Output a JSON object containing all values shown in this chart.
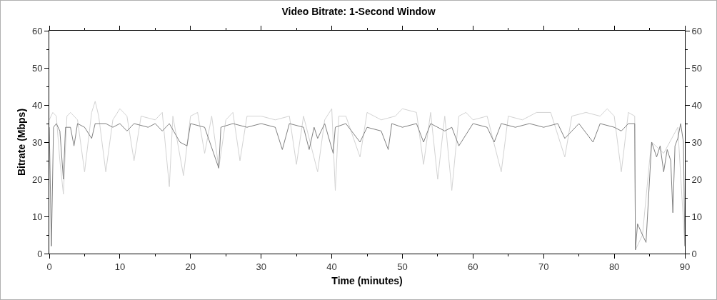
{
  "chart_data": {
    "type": "line",
    "title": "Video Bitrate: 1-Second Window",
    "xlabel": "Time (minutes)",
    "ylabel": "Bitrate (Mbps)",
    "xlim": [
      0,
      90
    ],
    "xticks": [
      0,
      10,
      20,
      30,
      40,
      50,
      60,
      70,
      80,
      90
    ],
    "ylim": [
      0,
      60
    ],
    "yticks": [
      0,
      10,
      20,
      30,
      40,
      50,
      60
    ],
    "y2lim": [
      0,
      60
    ],
    "y2ticks": [
      0,
      10,
      20,
      30,
      40,
      50,
      60
    ],
    "grid": false,
    "marker": "none",
    "line_style": "solid",
    "series": [
      {
        "color": "#d3d3d3",
        "x": [
          0,
          0.5,
          1,
          1.5,
          2,
          2.5,
          3,
          4,
          5,
          6,
          6.5,
          7,
          8,
          9,
          10,
          11,
          12,
          13,
          15,
          16,
          17,
          17.5,
          19,
          20,
          21,
          22,
          23,
          24,
          25,
          26,
          27,
          28,
          30,
          32,
          34,
          35,
          36,
          38,
          39,
          40,
          40.5,
          41,
          42,
          44,
          45,
          47,
          49,
          50,
          52,
          53,
          54,
          55,
          56,
          57,
          58,
          59,
          60,
          62,
          64,
          65,
          67,
          69,
          71,
          73,
          74,
          76,
          78,
          79,
          80,
          81,
          82,
          82.9,
          83,
          84,
          85,
          85.3,
          87,
          89,
          90
        ],
        "values": [
          36,
          38,
          37,
          25,
          16,
          37,
          38,
          36,
          22,
          38,
          41,
          37,
          22,
          36,
          39,
          37,
          25,
          37,
          36,
          38,
          18,
          37,
          21,
          37,
          38,
          27,
          37,
          23,
          36,
          38,
          25,
          37,
          37,
          36,
          37,
          24,
          37,
          22,
          36,
          39,
          17,
          37,
          37,
          26,
          38,
          36,
          37,
          39,
          38,
          24,
          38,
          20,
          37,
          17,
          37,
          38,
          36,
          37,
          22,
          37,
          36,
          38,
          38,
          26,
          37,
          38,
          37,
          39,
          37,
          22,
          38,
          37,
          1,
          5,
          25,
          30,
          27,
          34,
          2
        ]
      },
      {
        "color": "#808080",
        "x": [
          0,
          0.3,
          0.6,
          1,
          1.5,
          2,
          2.3,
          3,
          3.5,
          4,
          5,
          6,
          6.5,
          8,
          9,
          10,
          11,
          12,
          14,
          15,
          16,
          17,
          18.5,
          19.5,
          20,
          22,
          24,
          24.3,
          26,
          28,
          30,
          32,
          33,
          34,
          36,
          36.8,
          37.5,
          38,
          39,
          40.2,
          40.5,
          42,
          44,
          45,
          47,
          48,
          48.5,
          50,
          52,
          53,
          54,
          56,
          57,
          58,
          60,
          62,
          63,
          64,
          66,
          68,
          70,
          72,
          73,
          75,
          77,
          78,
          80,
          81,
          82,
          82.9,
          83,
          83.3,
          84,
          84.5,
          85,
          85.3,
          86,
          86.5,
          87,
          87.5,
          88,
          88.3,
          88.6,
          89,
          89.4,
          89.8,
          90
        ],
        "values": [
          34,
          2,
          34,
          35,
          33,
          20,
          34,
          34,
          29,
          35,
          34,
          31,
          35,
          35,
          34,
          35,
          33,
          35,
          34,
          35,
          33,
          35,
          30,
          29,
          35,
          34,
          23,
          34,
          35,
          34,
          35,
          34,
          28,
          35,
          34,
          28,
          34,
          31,
          35,
          27,
          34,
          35,
          30,
          34,
          33,
          28,
          35,
          34,
          35,
          30,
          35,
          33,
          34,
          29,
          35,
          34,
          30,
          35,
          34,
          35,
          34,
          35,
          31,
          35,
          30,
          35,
          34,
          33,
          35,
          35,
          1,
          8,
          5,
          3,
          20,
          30,
          26,
          29,
          22,
          28,
          25,
          11,
          29,
          31,
          35,
          30,
          2
        ]
      }
    ]
  }
}
